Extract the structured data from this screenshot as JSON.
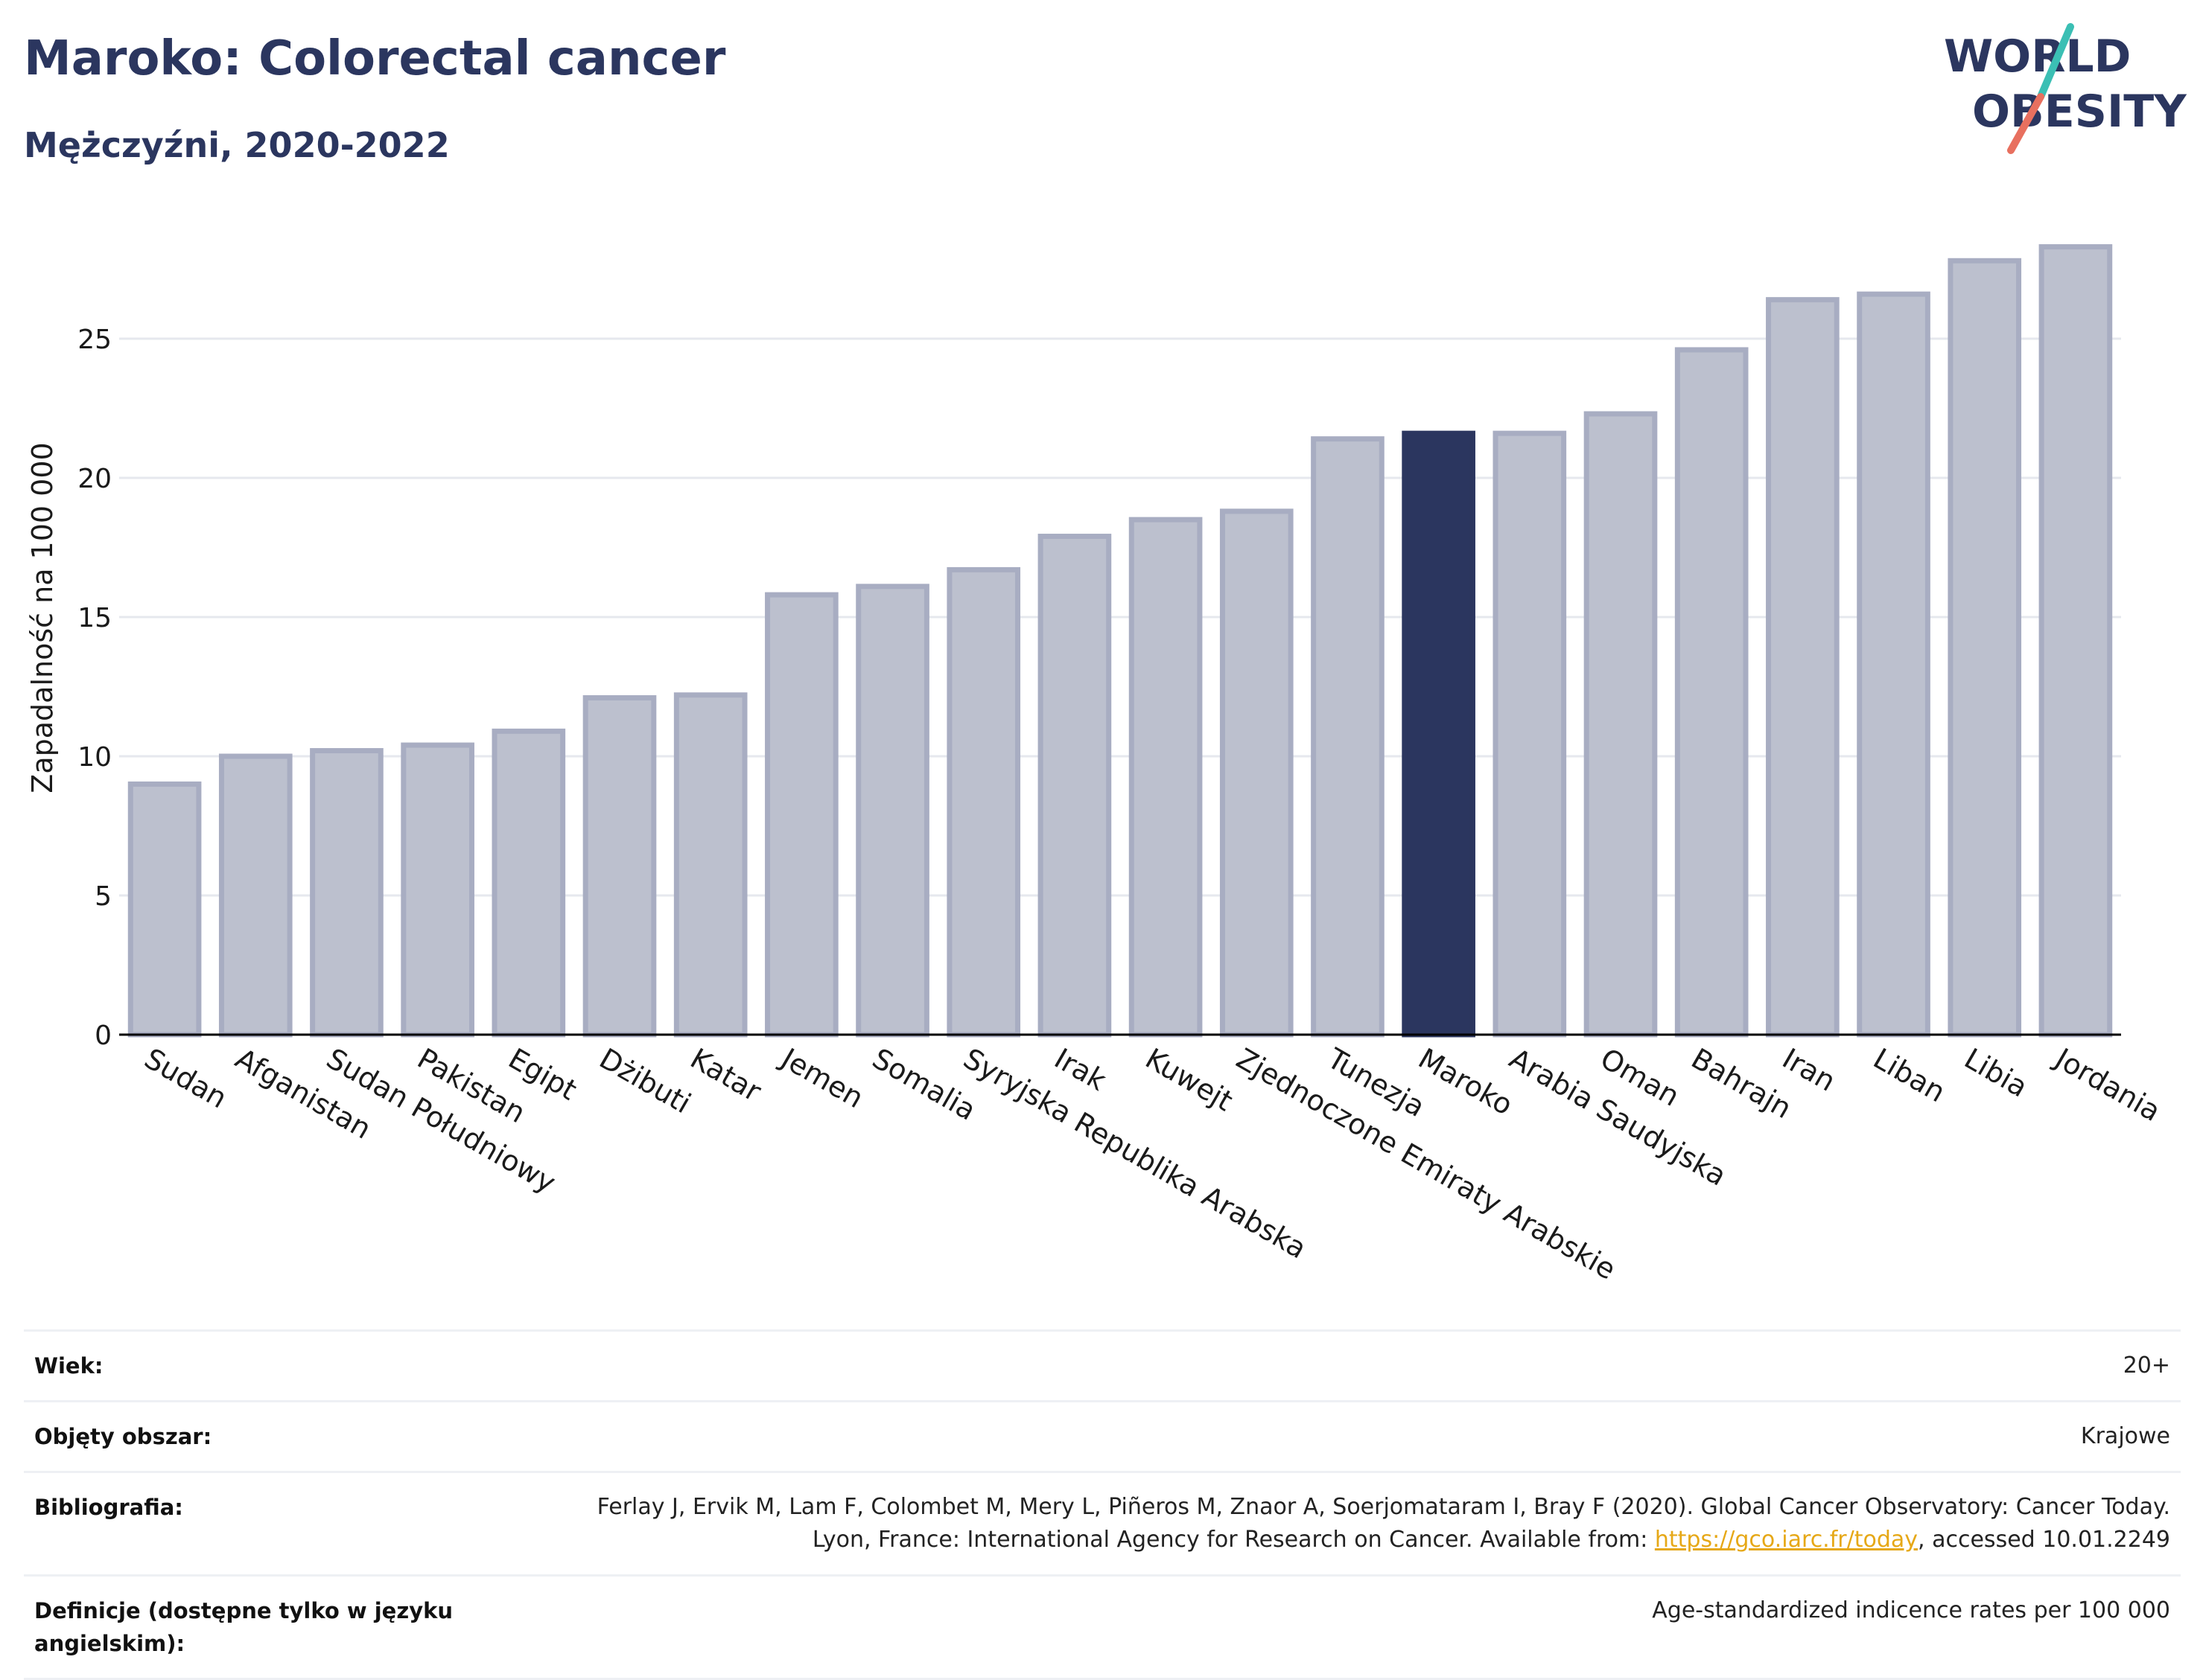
{
  "header": {
    "title": "Maroko: Colorectal cancer",
    "subtitle": "Mężczyźni, 2020-2022"
  },
  "logo": {
    "line1": "WORLD",
    "line2": "OBESITY",
    "colors": {
      "text": "#2b365f",
      "slash_top": "#3bbfb4",
      "slash_bottom": "#e8705f"
    }
  },
  "chart_data": {
    "type": "bar",
    "ylabel": "Zapadalność na 100 000",
    "xlabel": "",
    "ylim": [
      0,
      29
    ],
    "yticks": [
      0,
      5,
      10,
      15,
      20,
      25
    ],
    "grid": true,
    "categories": [
      "Sudan",
      "Afganistan",
      "Sudan Południowy",
      "Pakistan",
      "Egipt",
      "Dżibuti",
      "Katar",
      "Jemen",
      "Somalia",
      "Syryjska Republika Arabska",
      "Irak",
      "Kuwejt",
      "Zjednoczone Emiraty Arabskie",
      "Tunezja",
      "Maroko",
      "Arabia Saudyjska",
      "Oman",
      "Bahrajn",
      "Iran",
      "Liban",
      "Libia",
      "Jordania"
    ],
    "values": [
      9.0,
      10.0,
      10.2,
      10.4,
      10.9,
      12.1,
      12.2,
      15.8,
      16.1,
      16.7,
      17.9,
      18.5,
      18.8,
      21.4,
      21.6,
      21.6,
      22.3,
      24.6,
      26.4,
      26.6,
      27.8,
      28.3
    ],
    "highlight": "Maroko",
    "colors": {
      "bar": "#bcc0ce",
      "bar_border": "#a8adc2",
      "highlight": "#2b365f",
      "grid": "#e6e8ee",
      "axis": "#000000"
    }
  },
  "info": {
    "rows": [
      {
        "label": "Wiek:",
        "value": "20+"
      },
      {
        "label": "Objęty obszar:",
        "value": "Krajowe"
      },
      {
        "label": "Bibliografia:",
        "value_pre": "Ferlay J, Ervik M, Lam F, Colombet M, Mery L, Piñeros M, Znaor A, Soerjomataram I, Bray F (2020). Global Cancer Observatory: Cancer Today. Lyon, France: International Agency for Research on Cancer. Available from: ",
        "link": "https://gco.iarc.fr/today",
        "value_post": ", accessed 10.01.2249"
      },
      {
        "label": "Definicje (dostępne tylko w języku angielskim):",
        "value": "Age-standardized indicence rates per 100 000"
      }
    ]
  }
}
